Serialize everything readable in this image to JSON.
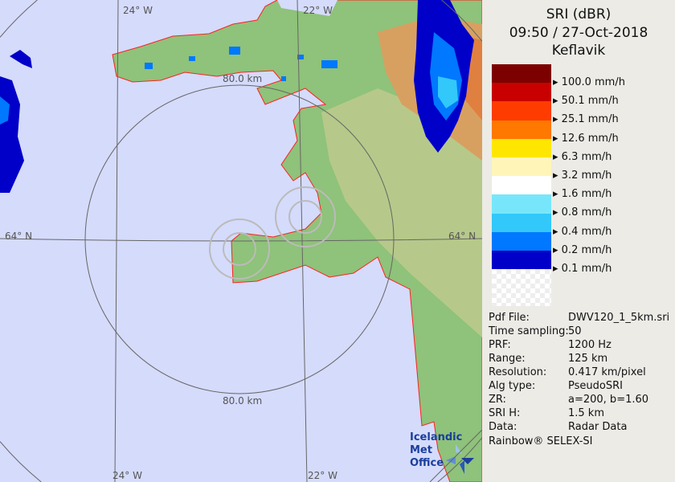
{
  "product": {
    "title": "SRI (dBR)",
    "datetime": "09:50 / 27-Oct-2018",
    "site": "Keflavik"
  },
  "legend": [
    {
      "color": "#7d0000",
      "label": "100.0 mm/h"
    },
    {
      "color": "#c80000",
      "label": "50.1 mm/h"
    },
    {
      "color": "#ff3c00",
      "label": "25.1 mm/h"
    },
    {
      "color": "#ff7800",
      "label": "12.6 mm/h"
    },
    {
      "color": "#ffe600",
      "label": "6.3 mm/h"
    },
    {
      "color": "#fff5b9",
      "label": "3.2 mm/h"
    },
    {
      "color": "#ffffff",
      "label": "1.6 mm/h"
    },
    {
      "color": "#78e6fa",
      "label": "0.8 mm/h"
    },
    {
      "color": "#32c8fa",
      "label": "0.4 mm/h"
    },
    {
      "color": "#0078ff",
      "label": "0.2 mm/h"
    },
    {
      "color": "#0000c8",
      "label": "0.1 mm/h"
    }
  ],
  "info": [
    {
      "key": "Pdf File:",
      "value": "DWV120_1_5km.sri"
    },
    {
      "key": "Time sampling:",
      "value": "50"
    },
    {
      "key": "PRF:",
      "value": "1200 Hz"
    },
    {
      "key": "Range:",
      "value": "125 km"
    },
    {
      "key": "Resolution:",
      "value": "0.417 km/pixel"
    },
    {
      "key": "Alg type:",
      "value": "PseudoSRI"
    },
    {
      "key": "ZR:",
      "value": "a=200, b=1.60"
    },
    {
      "key": "SRI H:",
      "value": "1.5 km"
    },
    {
      "key": "Data:",
      "value": "Radar Data"
    }
  ],
  "credit": "Rainbow® SELEX-SI",
  "map": {
    "lon_labels": [
      "24° W",
      "22° W"
    ],
    "lat_label": "64° N",
    "range_label": "80.0 km",
    "logo_line1": "Icelandic Met",
    "logo_line2": "Office"
  }
}
